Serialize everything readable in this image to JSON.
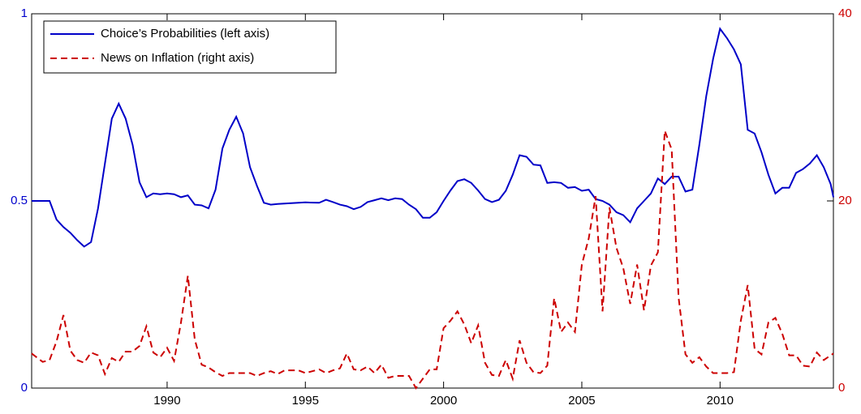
{
  "chart_data": {
    "type": "line",
    "xlim": [
      1985.1,
      2014.1
    ],
    "xticks": [
      1990,
      1995,
      2000,
      2005,
      2010
    ],
    "ylim": [
      0,
      1
    ],
    "yticks": [
      0,
      0.5,
      1
    ],
    "y2lim": [
      0,
      40
    ],
    "y2ticks": [
      0,
      20,
      40
    ],
    "y_color": "#0000cc",
    "y2_color": "#cc0000",
    "legend": "upper left",
    "series": [
      {
        "name": "Choice’s Probabilities (left axis)",
        "color": "#0000c8",
        "style": "solid",
        "x": [
          1985.1,
          1985.75,
          1986,
          1986.25,
          1986.5,
          1986.75,
          1987,
          1987.25,
          1987.5,
          1987.75,
          1988,
          1988.25,
          1988.5,
          1988.75,
          1989,
          1989.25,
          1989.5,
          1989.75,
          1990,
          1990.25,
          1990.5,
          1990.75,
          1991,
          1991.25,
          1991.5,
          1991.75,
          1992,
          1992.25,
          1992.5,
          1992.75,
          1993,
          1993.25,
          1993.5,
          1993.75,
          1994,
          1994.5,
          1995,
          1995.5,
          1995.75,
          1996,
          1996.25,
          1996.5,
          1996.75,
          1997,
          1997.25,
          1997.5,
          1997.75,
          1998,
          1998.25,
          1998.5,
          1998.75,
          1999,
          1999.25,
          1999.5,
          1999.75,
          2000,
          2000.25,
          2000.5,
          2000.75,
          2001,
          2001.25,
          2001.5,
          2001.75,
          2002,
          2002.25,
          2002.5,
          2002.75,
          2003,
          2003.25,
          2003.5,
          2003.75,
          2004,
          2004.25,
          2004.5,
          2004.75,
          2005,
          2005.25,
          2005.5,
          2005.75,
          2006,
          2006.25,
          2006.5,
          2006.75,
          2007,
          2007.25,
          2007.5,
          2007.75,
          2008,
          2008.25,
          2008.5,
          2008.75,
          2009,
          2009.25,
          2009.5,
          2009.75,
          2010,
          2010.25,
          2010.5,
          2010.75,
          2011,
          2011.25,
          2011.5,
          2011.75,
          2012,
          2012.25,
          2012.5,
          2012.75,
          2013,
          2013.25,
          2013.5,
          2013.75,
          2014,
          2014.1
        ],
        "values": [
          0.5,
          0.5,
          0.45,
          0.43,
          0.415,
          0.395,
          0.378,
          0.39,
          0.48,
          0.6,
          0.72,
          0.76,
          0.72,
          0.65,
          0.55,
          0.51,
          0.52,
          0.518,
          0.52,
          0.518,
          0.51,
          0.515,
          0.49,
          0.488,
          0.48,
          0.53,
          0.64,
          0.69,
          0.725,
          0.68,
          0.59,
          0.54,
          0.495,
          0.49,
          0.492,
          0.494,
          0.496,
          0.495,
          0.503,
          0.497,
          0.49,
          0.486,
          0.478,
          0.484,
          0.497,
          0.502,
          0.507,
          0.502,
          0.507,
          0.505,
          0.49,
          0.478,
          0.455,
          0.455,
          0.47,
          0.5,
          0.528,
          0.553,
          0.558,
          0.548,
          0.528,
          0.505,
          0.497,
          0.503,
          0.527,
          0.57,
          0.622,
          0.618,
          0.597,
          0.595,
          0.548,
          0.55,
          0.548,
          0.535,
          0.537,
          0.527,
          0.53,
          0.505,
          0.5,
          0.49,
          0.47,
          0.462,
          0.443,
          0.48,
          0.5,
          0.52,
          0.56,
          0.545,
          0.565,
          0.565,
          0.525,
          0.53,
          0.65,
          0.78,
          0.88,
          0.96,
          0.935,
          0.905,
          0.865,
          0.69,
          0.68,
          0.63,
          0.57,
          0.52,
          0.535,
          0.535,
          0.575,
          0.585,
          0.6,
          0.622,
          0.59,
          0.545,
          0.51
        ]
      },
      {
        "name": "News on Inflation (right axis)",
        "color": "#cc0000",
        "style": "dashed",
        "axis": "y2",
        "x": [
          1985.1,
          1985.5,
          1985.75,
          1986,
          1986.25,
          1986.5,
          1986.75,
          1987,
          1987.25,
          1987.5,
          1987.75,
          1988,
          1988.25,
          1988.5,
          1988.75,
          1989,
          1989.25,
          1989.5,
          1989.75,
          1990,
          1990.25,
          1990.5,
          1990.75,
          1991,
          1991.25,
          1991.5,
          1991.75,
          1992,
          1992.25,
          1993,
          1993.25,
          1993.5,
          1993.75,
          1994,
          1994.25,
          1994.75,
          1995,
          1995.25,
          1995.5,
          1995.75,
          1996,
          1996.25,
          1996.5,
          1996.75,
          1997,
          1997.25,
          1997.5,
          1997.75,
          1998,
          1998.25,
          1998.75,
          1999,
          1999.25,
          1999.5,
          1999.75,
          2000,
          2000.25,
          2000.5,
          2000.75,
          2001,
          2001.25,
          2001.5,
          2001.75,
          2002,
          2002.25,
          2002.5,
          2002.75,
          2003,
          2003.25,
          2003.5,
          2003.75,
          2004,
          2004.25,
          2004.5,
          2004.75,
          2005,
          2005.25,
          2005.5,
          2005.75,
          2006,
          2006.25,
          2006.5,
          2006.75,
          2007,
          2007.25,
          2007.5,
          2007.75,
          2008,
          2008.25,
          2008.5,
          2008.75,
          2009,
          2009.25,
          2009.5,
          2009.75,
          2010.25,
          2010.5,
          2010.75,
          2011,
          2011.25,
          2011.5,
          2011.75,
          2012,
          2012.25,
          2012.5,
          2012.75,
          2013,
          2013.25,
          2013.5,
          2013.75,
          2014.1
        ],
        "values": [
          3.7,
          2.8,
          3.0,
          5.0,
          7.8,
          4.0,
          3.0,
          2.7,
          3.8,
          3.5,
          1.5,
          3.2,
          2.8,
          3.9,
          3.9,
          4.5,
          6.6,
          3.8,
          3.3,
          4.3,
          2.9,
          7.0,
          12.0,
          5.2,
          2.5,
          2.2,
          1.7,
          1.3,
          1.6,
          1.6,
          1.3,
          1.6,
          1.8,
          1.5,
          1.9,
          1.9,
          1.6,
          1.8,
          2.0,
          1.6,
          1.9,
          2.1,
          3.7,
          2.0,
          1.9,
          2.3,
          1.6,
          2.5,
          1.1,
          1.3,
          1.3,
          0,
          1.0,
          2.0,
          2.0,
          6.4,
          7.2,
          8.2,
          6.8,
          4.8,
          6.7,
          2.7,
          1.4,
          1.3,
          3.0,
          1.0,
          5.1,
          2.7,
          1.7,
          1.6,
          2.4,
          9.6,
          6.0,
          7.0,
          6.0,
          13.2,
          16.0,
          20.5,
          8.2,
          19.3,
          15.0,
          12.8,
          9.0,
          13.2,
          8.3,
          13.1,
          14.5,
          27.5,
          25.5,
          9.7,
          3.6,
          2.7,
          3.3,
          2.3,
          1.6,
          1.6,
          1.7,
          7.2,
          11.0,
          4.2,
          3.6,
          7.0,
          7.5,
          5.8,
          3.5,
          3.5,
          2.4,
          2.3,
          3.8,
          3.0,
          3.7
        ]
      }
    ]
  }
}
